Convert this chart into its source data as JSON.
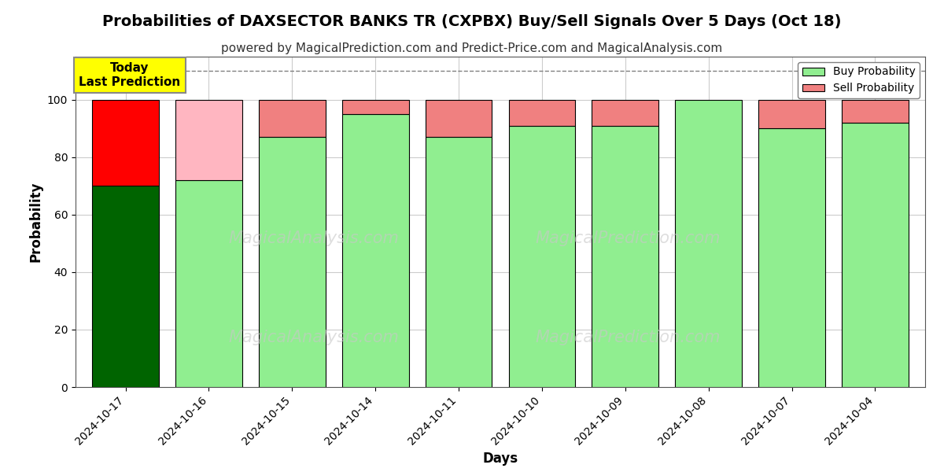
{
  "title": "Probabilities of DAXSECTOR BANKS TR (CXPBX) Buy/Sell Signals Over 5 Days (Oct 18)",
  "subtitle": "powered by MagicalPrediction.com and Predict-Price.com and MagicalAnalysis.com",
  "xlabel": "Days",
  "ylabel": "Probability",
  "dates": [
    "2024-10-17",
    "2024-10-16",
    "2024-10-15",
    "2024-10-14",
    "2024-10-11",
    "2024-10-10",
    "2024-10-09",
    "2024-10-08",
    "2024-10-07",
    "2024-10-04"
  ],
  "buy_values": [
    70,
    72,
    87,
    95,
    87,
    91,
    91,
    100,
    90,
    92
  ],
  "sell_values": [
    30,
    28,
    13,
    5,
    13,
    9,
    9,
    0,
    10,
    8
  ],
  "buy_color_0": "#006400",
  "buy_color_1": "#90EE90",
  "buy_color_normal": "#90EE90",
  "sell_color_0": "#FF0000",
  "sell_color_1": "#FFB6C1",
  "sell_color_normal": "#F08080",
  "bar_edge_color": "#000000",
  "dashed_line_y": 110,
  "ylim": [
    0,
    115
  ],
  "yticks": [
    0,
    20,
    40,
    60,
    80,
    100
  ],
  "annotation_text": "Today\nLast Prediction",
  "annotation_bg": "#FFFF00",
  "watermark_text_left": "MagicalAnalysis.com",
  "watermark_text_right": "MagicalPrediction.com",
  "watermark_color": "#c8c8c8",
  "background_color": "#ffffff",
  "grid_color": "#cccccc",
  "title_fontsize": 14,
  "subtitle_fontsize": 11,
  "legend_buy_color": "#90EE90",
  "legend_sell_color": "#F08080",
  "bar_width": 0.8
}
